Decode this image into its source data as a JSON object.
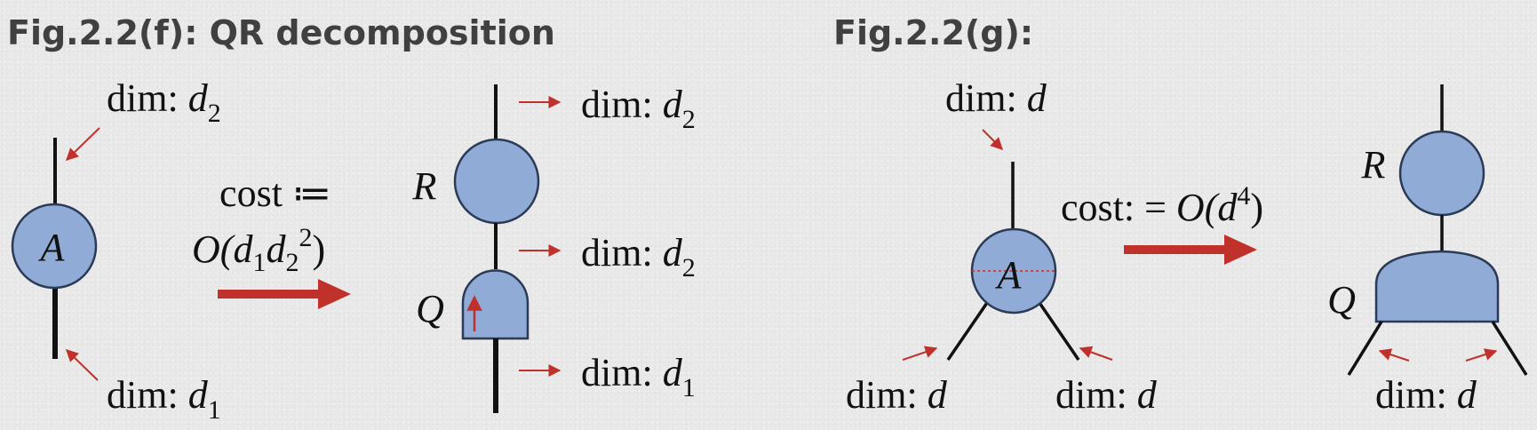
{
  "colors": {
    "node_fill": "#8fabd6",
    "node_stroke": "#2b3a55",
    "arrow_red": "#c0312b",
    "leg": "#111111"
  },
  "figure_f": {
    "title": "Fig.2.2(f): QR decomposition",
    "tensor_a": "A",
    "label_top": {
      "prefix": "dim: ",
      "sym": "d",
      "sub": "2"
    },
    "label_bottom": {
      "prefix": "dim: ",
      "sym": "d",
      "sub": "1"
    },
    "cost": {
      "line1": "cost ≔",
      "o": "O(",
      "d1": "d",
      "d1_sub": "1",
      "d2": "d",
      "d2_sub": "2",
      "d2_sup": "2",
      "close": ")"
    },
    "tensor_r": "R",
    "tensor_q": "Q",
    "label_r_top": {
      "prefix": "dim: ",
      "sym": "d",
      "sub": "2"
    },
    "label_rq": {
      "prefix": "dim: ",
      "sym": "d",
      "sub": "2"
    },
    "label_q_bottom": {
      "prefix": "dim: ",
      "sym": "d",
      "sub": "1"
    }
  },
  "figure_g": {
    "title": "Fig.2.2(g):",
    "tensor_a": "A",
    "label_top": {
      "prefix": "dim: ",
      "sym": "d"
    },
    "label_left": {
      "prefix": "dim: ",
      "sym": "d"
    },
    "label_right": {
      "prefix": "dim: ",
      "sym": "d"
    },
    "cost": {
      "prefix": "cost: = ",
      "o": "O(",
      "d": "d",
      "sup": "4",
      "close": ")"
    },
    "tensor_r": "R",
    "tensor_q": "Q",
    "label_q": {
      "prefix": "dim: ",
      "sym": "d"
    }
  }
}
